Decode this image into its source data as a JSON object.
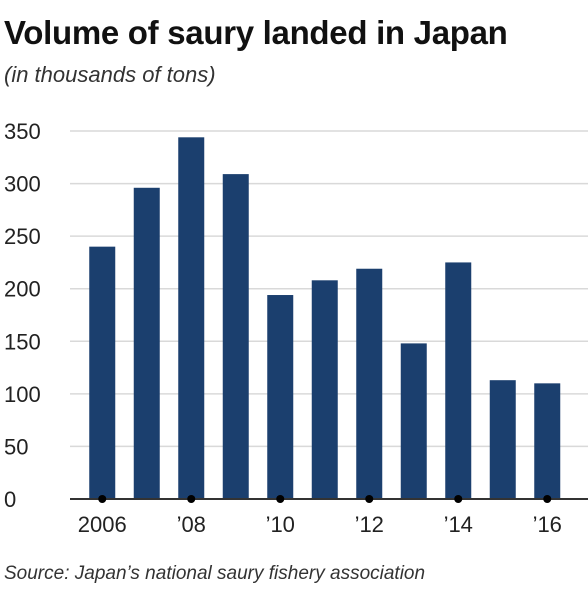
{
  "chart_data": {
    "type": "bar",
    "title": "Volume of saury landed in Japan",
    "subtitle": "(in thousands of tons)",
    "source": "Source: Japan’s national saury fishery association",
    "categories": [
      "2006",
      "2007",
      "2008",
      "2009",
      "2010",
      "2011",
      "2012",
      "2013",
      "2014",
      "2015",
      "2016"
    ],
    "values": [
      240,
      296,
      344,
      309,
      194,
      208,
      219,
      148,
      225,
      113,
      110
    ],
    "x_tick_labels": [
      {
        "category": "2006",
        "label": "2006"
      },
      {
        "category": "2008",
        "label": "’08"
      },
      {
        "category": "2010",
        "label": "’10"
      },
      {
        "category": "2012",
        "label": "’12"
      },
      {
        "category": "2014",
        "label": "’14"
      },
      {
        "category": "2016",
        "label": "’16"
      }
    ],
    "yticks": [
      0,
      50,
      100,
      150,
      200,
      250,
      300,
      350
    ],
    "ylim": [
      0,
      350
    ],
    "grid": true,
    "colors": {
      "bar": "#1b3f6e",
      "grid": "#d9d9d9",
      "axis": "#333333"
    }
  }
}
